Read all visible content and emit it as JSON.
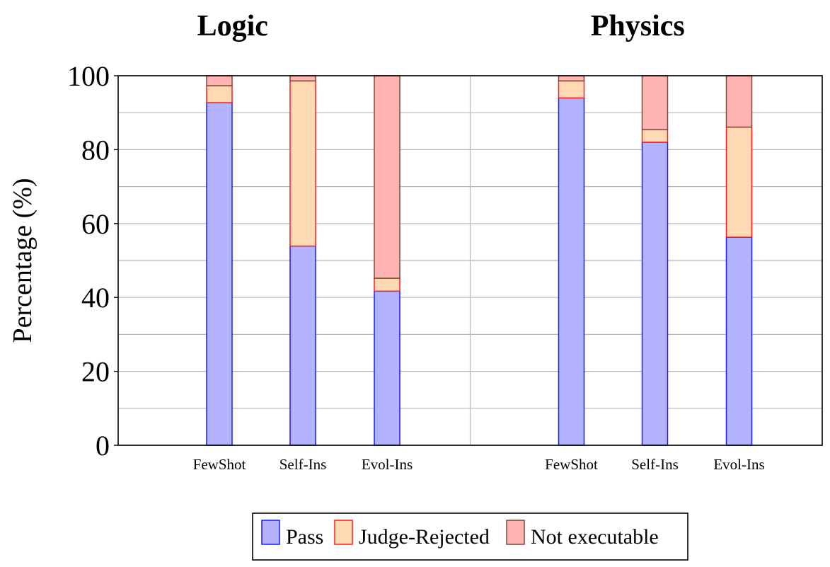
{
  "chart_data": {
    "type": "bar",
    "stacked": true,
    "ylabel": "Percentage (%)",
    "ylim": [
      0,
      100
    ],
    "yticks": [
      0,
      20,
      40,
      60,
      80,
      100
    ],
    "grid": true,
    "legend_position": "bottom-center",
    "categories": [
      "FewShot",
      "Self-Ins",
      "Evol-Ins"
    ],
    "panels": [
      {
        "title": "Logic",
        "series": [
          {
            "name": "Pass",
            "values": [
              92.7,
              53.9,
              41.7
            ]
          },
          {
            "name": "Judge-Rejected",
            "values": [
              4.6,
              44.7,
              3.5
            ]
          },
          {
            "name": "Not executable",
            "values": [
              2.7,
              1.4,
              54.8
            ]
          }
        ]
      },
      {
        "title": "Physics",
        "series": [
          {
            "name": "Pass",
            "values": [
              94.0,
              82.0,
              56.3
            ]
          },
          {
            "name": "Judge-Rejected",
            "values": [
              4.6,
              3.4,
              29.8
            ]
          },
          {
            "name": "Not executable",
            "values": [
              1.4,
              14.6,
              13.9
            ]
          }
        ]
      }
    ],
    "legend": [
      {
        "name": "Pass",
        "fill": "#b3b3ff",
        "stroke": "#1a1aff"
      },
      {
        "name": "Judge-Rejected",
        "fill": "#ffd9b3",
        "stroke": "#ff1a1a"
      },
      {
        "name": "Not executable",
        "fill": "#ffb3b3",
        "stroke": "#7a4a36"
      }
    ]
  }
}
